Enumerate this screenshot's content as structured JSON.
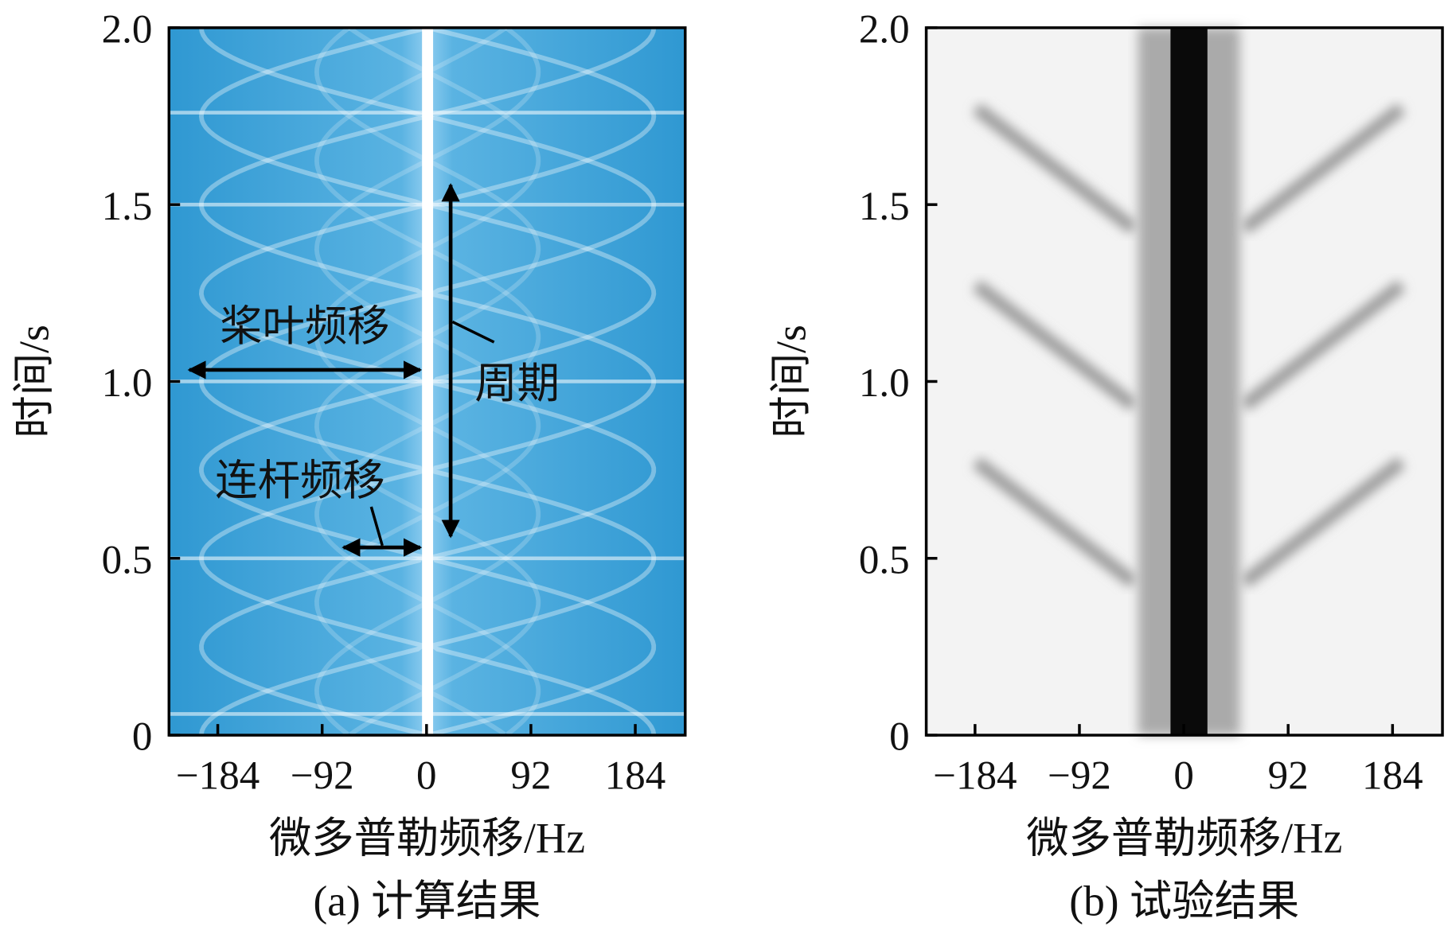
{
  "chart_data": [
    {
      "type": "spectrogram",
      "subtitle": "(a) 计算结果",
      "xlabel": "微多普勒频移/Hz",
      "ylabel": "时间/s",
      "xlim": [
        -227,
        228
      ],
      "ylim": [
        0,
        2
      ],
      "xticks": [
        {
          "value": -184,
          "label": "−184"
        },
        {
          "value": -92,
          "label": "−92"
        },
        0,
        92,
        184
      ],
      "yticks": [
        0,
        0.5,
        {
          "value": 1.0,
          "label": "1.0"
        },
        1.5,
        {
          "value": 2.0,
          "label": "2.0"
        }
      ],
      "annotations": [
        "桨叶频移",
        "周期",
        "连杆频移"
      ]
    },
    {
      "type": "spectrogram",
      "subtitle": "(b) 试验结果",
      "xlabel": "微多普勒频移/Hz",
      "ylabel": "时间/s",
      "xlim": [
        -227,
        228
      ],
      "ylim": [
        0,
        2
      ],
      "xticks": [
        {
          "value": -184,
          "label": "−184"
        },
        {
          "value": -92,
          "label": "−92"
        },
        0,
        92,
        184
      ],
      "yticks": [
        0,
        0.5,
        {
          "value": 1.0,
          "label": "1.0"
        },
        1.5,
        {
          "value": 2.0,
          "label": "2.0"
        }
      ]
    }
  ]
}
